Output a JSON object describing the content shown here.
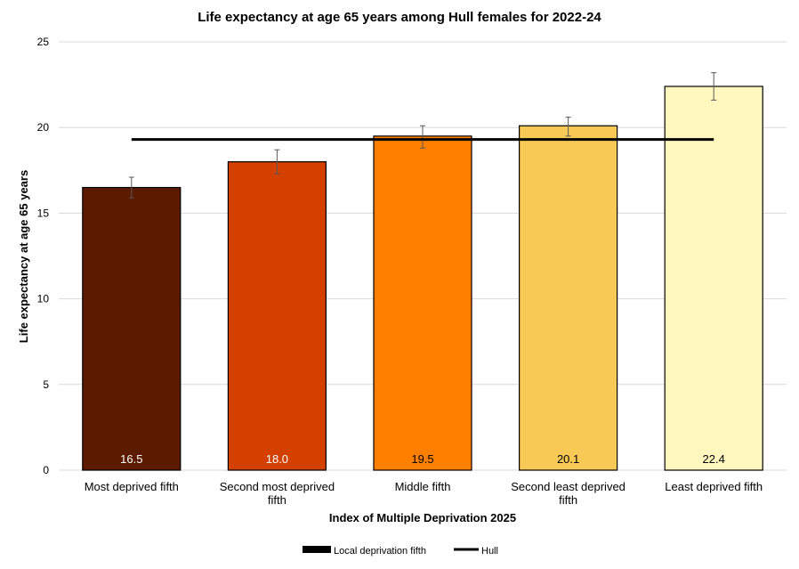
{
  "chart_data": {
    "type": "bar",
    "title": "Life expectancy at age 65 years among Hull females for 2022-24",
    "xlabel": "Index of Multiple Deprivation 2025",
    "ylabel": "Life expectancy at age 65 years",
    "ylim": [
      0,
      25
    ],
    "yticks": [
      "0",
      "5",
      "10",
      "15",
      "20",
      "25"
    ],
    "grid": true,
    "legend_position": "bottom",
    "categories": [
      [
        "Most deprived fifth"
      ],
      [
        "Second most deprived",
        "fifth"
      ],
      [
        "Middle fifth"
      ],
      [
        "Second least deprived",
        "fifth"
      ],
      [
        "Least deprived fifth"
      ]
    ],
    "series": [
      {
        "name": "Local deprivation fifth",
        "values": [
          16.5,
          18.0,
          19.5,
          20.1,
          22.4
        ],
        "labels": [
          "16.5",
          "18.0",
          "19.5",
          "20.1",
          "22.4"
        ],
        "colors": [
          "#5c1a00",
          "#d44000",
          "#ff8000",
          "#f8c954",
          "#fff7bd"
        ],
        "ci_lower": [
          15.9,
          17.3,
          18.8,
          19.5,
          21.6
        ],
        "ci_upper": [
          17.1,
          18.7,
          20.1,
          20.6,
          23.2
        ]
      },
      {
        "name": "Hull",
        "type": "line",
        "value": 19.3,
        "color": "#000000"
      }
    ],
    "label_colors": [
      "#ffffff",
      "#ffffff",
      "#000000",
      "#000000",
      "#000000"
    ]
  }
}
